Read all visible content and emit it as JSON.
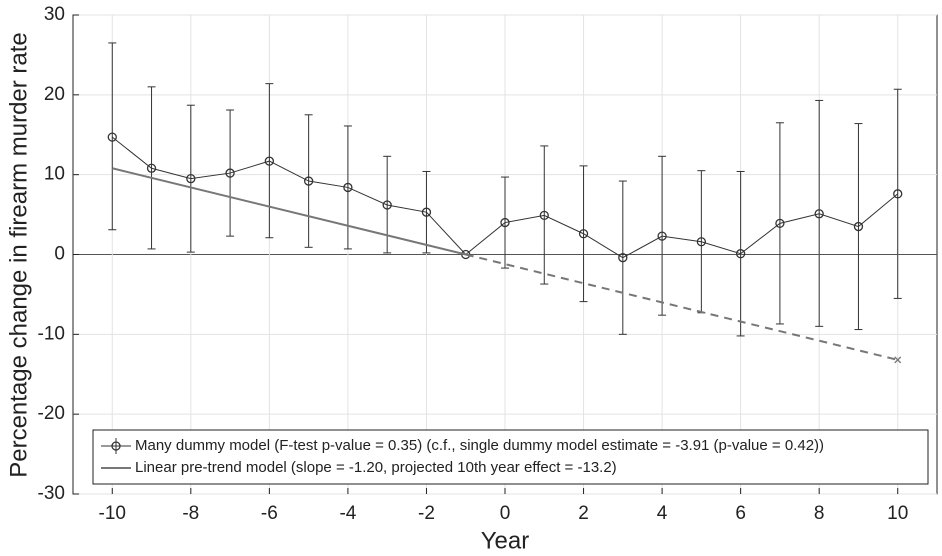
{
  "chart_data": {
    "type": "line",
    "xlabel": "Year",
    "ylabel": "Percentage change in firearm murder rate",
    "xlim": [
      -11,
      11
    ],
    "ylim": [
      -30,
      30
    ],
    "xticks": [
      -10,
      -8,
      -6,
      -4,
      -2,
      0,
      2,
      4,
      6,
      8,
      10
    ],
    "yticks": [
      -30,
      -20,
      -10,
      0,
      10,
      20,
      30
    ],
    "grid": true,
    "legend": "lower",
    "series": [
      {
        "name": "Many dummy model (F-test p-value = 0.35) (c.f., single dummy model estimate = -3.91 (p-value = 0.42))",
        "color": "#333333",
        "marker": "circle",
        "x": [
          -10,
          -9,
          -8,
          -7,
          -6,
          -5,
          -4,
          -3,
          -2,
          -1,
          0,
          1,
          2,
          3,
          4,
          5,
          6,
          7,
          8,
          9,
          10
        ],
        "values": [
          14.7,
          10.8,
          9.5,
          10.2,
          11.7,
          9.2,
          8.4,
          6.2,
          5.3,
          0,
          4.0,
          4.9,
          2.6,
          -0.4,
          2.3,
          1.6,
          0.1,
          3.9,
          5.1,
          3.5,
          7.6
        ],
        "upper": [
          26.5,
          21.0,
          18.7,
          18.1,
          21.4,
          17.5,
          16.1,
          12.3,
          10.4,
          null,
          9.7,
          13.6,
          11.1,
          9.2,
          12.3,
          10.5,
          10.4,
          16.5,
          19.3,
          16.4,
          20.7
        ],
        "lower": [
          3.1,
          0.7,
          0.3,
          2.3,
          2.1,
          0.9,
          0.7,
          0.2,
          0.2,
          null,
          -1.7,
          -3.7,
          -5.9,
          -10.0,
          -7.6,
          -7.3,
          -10.2,
          -8.7,
          -9.0,
          -9.4,
          -5.5
        ]
      },
      {
        "name": "Linear pre-trend model (slope = -1.20, projected 10th year effect = -13.2)",
        "color": "#777777",
        "dashed": false,
        "x": [
          -10,
          -1
        ],
        "values": [
          10.8,
          0
        ]
      },
      {
        "color": "#777777",
        "dashed": true,
        "marker": "x",
        "x": [
          -1,
          10
        ],
        "values": [
          0,
          -13.2
        ]
      }
    ]
  }
}
